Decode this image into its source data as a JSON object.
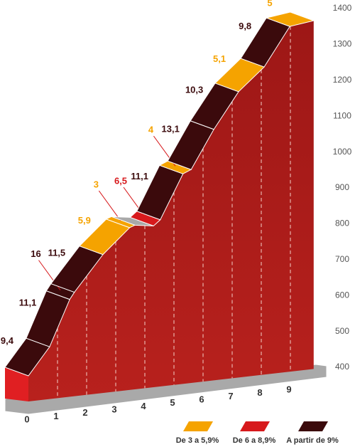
{
  "chart_data": {
    "type": "profile",
    "x": [
      0,
      0.73,
      1.42,
      1.58,
      2.56,
      3.48,
      3.66,
      4.3,
      4.53,
      5.31,
      5.59,
      6.37,
      7.22,
      8.1,
      8.98,
      9.8
    ],
    "values": [
      400,
      481,
      613,
      633,
      738,
      813,
      820,
      818,
      835,
      963,
      975,
      1087,
      1192,
      1261,
      1374,
      1390
    ],
    "segments": {
      "labels": [
        "9,4",
        "11,1",
        "16",
        "11,5",
        "5,9",
        "3",
        null,
        "6,5",
        "11,1",
        "4",
        "13,1",
        "10,3",
        "5,1",
        "9,8",
        "5"
      ],
      "colors": [
        "#3b0a0c",
        "#3b0a0c",
        "#3b0a0c",
        "#3b0a0c",
        "#f5a300",
        "#f5a300",
        "#a9a9a9",
        "#d7191c",
        "#3b0a0c",
        "#f5a300",
        "#3b0a0c",
        "#3b0a0c",
        "#f5a300",
        "#3b0a0c",
        "#f5a300"
      ]
    },
    "xlim": [
      0,
      9.8
    ],
    "xticks": [
      0,
      1,
      2,
      3,
      4,
      5,
      6,
      7,
      8,
      9
    ],
    "ylim": [
      400,
      1400
    ],
    "yticks": [
      400,
      500,
      600,
      700,
      800,
      900,
      1000,
      1100,
      1200,
      1300,
      1400
    ],
    "legend": [
      {
        "label": "De 3 a 5,9%",
        "color": "#f5a300"
      },
      {
        "label": "De 6 a 8,9%",
        "color": "#d7191c"
      },
      {
        "label": "A partir de 9%",
        "color": "#3b0a0c"
      }
    ]
  }
}
